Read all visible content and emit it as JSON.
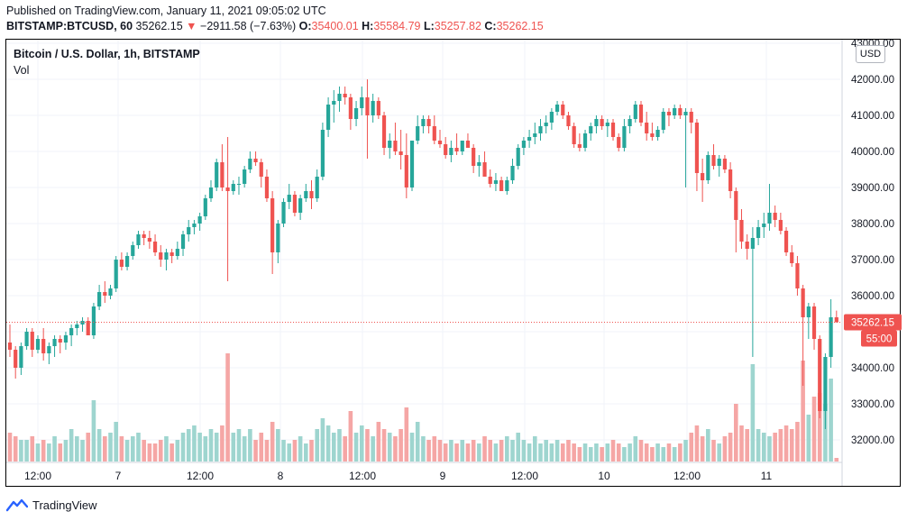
{
  "header": {
    "published": "Published on TradingView.com, January 11, 2021 09:05:02 UTC",
    "symbol": "BITSTAMP:BTCUSD, 60",
    "last": "35262.15",
    "change_arrow": "▼",
    "change": "−2911.58 (−7.63%)",
    "open_label": "O:",
    "open": "35400.01",
    "high_label": "H:",
    "high": "35584.79",
    "low_label": "L:",
    "low": "35257.82",
    "close_label": "C:",
    "close": "35262.15"
  },
  "pane": {
    "title": "Bitcoin / U.S. Dollar, 1h, BITSTAMP",
    "volume_label": "Vol",
    "currency_button": "USD"
  },
  "footer": {
    "brand": "TradingView",
    "logo_icon": "tradingview-logo-icon"
  },
  "colors": {
    "up": "#26a69a",
    "down": "#ef5350",
    "vol_up": "#9ed5cf",
    "vol_down": "#f5a6a5",
    "grid": "#f0f3fa",
    "text": "#131722"
  },
  "chart_data": {
    "type": "candlestick",
    "title": "Bitcoin / U.S. Dollar, 1h, BITSTAMP",
    "y_axis_position": "right",
    "y_ticks": [
      32000,
      33000,
      34000,
      35000,
      36000,
      37000,
      38000,
      39000,
      40000,
      41000,
      42000,
      43000
    ],
    "y_tick_labels": [
      "32000.00",
      "33000.00",
      "34000.00",
      "",
      "36000.00",
      "37000.00",
      "38000.00",
      "39000.00",
      "40000.00",
      "41000.00",
      "42000.00",
      "43000.00"
    ],
    "ylim": [
      31400,
      43100
    ],
    "x_ticks": [
      "12:00",
      "7",
      "12:00",
      "8",
      "12:00",
      "9",
      "12:00",
      "10",
      "12:00",
      "11"
    ],
    "last_price_label": "35262.15",
    "countdown_label": "55:00",
    "grid": true,
    "candles": [
      {
        "o": 34700,
        "h": 35200,
        "l": 34300,
        "c": 34500,
        "v": 8
      },
      {
        "o": 34500,
        "h": 34600,
        "l": 33700,
        "c": 34000,
        "v": 7
      },
      {
        "o": 34000,
        "h": 34700,
        "l": 33800,
        "c": 34600,
        "v": 6
      },
      {
        "o": 34600,
        "h": 35100,
        "l": 34500,
        "c": 35000,
        "v": 6
      },
      {
        "o": 35000,
        "h": 35100,
        "l": 34300,
        "c": 34500,
        "v": 7
      },
      {
        "o": 34500,
        "h": 34900,
        "l": 34400,
        "c": 34800,
        "v": 5
      },
      {
        "o": 34800,
        "h": 35100,
        "l": 34200,
        "c": 34400,
        "v": 6
      },
      {
        "o": 34400,
        "h": 34700,
        "l": 34100,
        "c": 34600,
        "v": 5
      },
      {
        "o": 34600,
        "h": 34900,
        "l": 34300,
        "c": 34800,
        "v": 7
      },
      {
        "o": 34800,
        "h": 34900,
        "l": 34400,
        "c": 34700,
        "v": 5
      },
      {
        "o": 34700,
        "h": 35000,
        "l": 34500,
        "c": 34900,
        "v": 6
      },
      {
        "o": 34900,
        "h": 35200,
        "l": 34600,
        "c": 35100,
        "v": 9
      },
      {
        "o": 35100,
        "h": 35300,
        "l": 34900,
        "c": 35200,
        "v": 7
      },
      {
        "o": 35200,
        "h": 35400,
        "l": 35000,
        "c": 35300,
        "v": 6
      },
      {
        "o": 35300,
        "h": 35400,
        "l": 34900,
        "c": 34900,
        "v": 8
      },
      {
        "o": 34900,
        "h": 35800,
        "l": 34800,
        "c": 35700,
        "v": 17
      },
      {
        "o": 35700,
        "h": 36300,
        "l": 35600,
        "c": 36100,
        "v": 9
      },
      {
        "o": 36100,
        "h": 36400,
        "l": 35800,
        "c": 36000,
        "v": 7
      },
      {
        "o": 36000,
        "h": 36300,
        "l": 35900,
        "c": 36200,
        "v": 8
      },
      {
        "o": 36200,
        "h": 37100,
        "l": 36100,
        "c": 37000,
        "v": 11
      },
      {
        "o": 37000,
        "h": 37200,
        "l": 36700,
        "c": 36800,
        "v": 7
      },
      {
        "o": 36800,
        "h": 37200,
        "l": 36700,
        "c": 37100,
        "v": 6
      },
      {
        "o": 37100,
        "h": 37500,
        "l": 37000,
        "c": 37400,
        "v": 7
      },
      {
        "o": 37400,
        "h": 37800,
        "l": 37300,
        "c": 37700,
        "v": 8
      },
      {
        "o": 37700,
        "h": 37800,
        "l": 37400,
        "c": 37600,
        "v": 6
      },
      {
        "o": 37600,
        "h": 37800,
        "l": 37300,
        "c": 37500,
        "v": 5
      },
      {
        "o": 37500,
        "h": 37700,
        "l": 37100,
        "c": 37200,
        "v": 5
      },
      {
        "o": 37200,
        "h": 37400,
        "l": 36800,
        "c": 37000,
        "v": 6
      },
      {
        "o": 37000,
        "h": 37300,
        "l": 36700,
        "c": 37200,
        "v": 7
      },
      {
        "o": 37200,
        "h": 37300,
        "l": 36900,
        "c": 37100,
        "v": 5
      },
      {
        "o": 37100,
        "h": 37500,
        "l": 37000,
        "c": 37300,
        "v": 6
      },
      {
        "o": 37300,
        "h": 37800,
        "l": 37100,
        "c": 37700,
        "v": 8
      },
      {
        "o": 37700,
        "h": 38100,
        "l": 37500,
        "c": 37900,
        "v": 9
      },
      {
        "o": 37900,
        "h": 38100,
        "l": 37700,
        "c": 38000,
        "v": 10
      },
      {
        "o": 38000,
        "h": 38300,
        "l": 37800,
        "c": 38200,
        "v": 8
      },
      {
        "o": 38200,
        "h": 38800,
        "l": 38100,
        "c": 38700,
        "v": 7
      },
      {
        "o": 38700,
        "h": 39200,
        "l": 38600,
        "c": 39000,
        "v": 9
      },
      {
        "o": 39000,
        "h": 39800,
        "l": 38900,
        "c": 39700,
        "v": 8
      },
      {
        "o": 39700,
        "h": 40200,
        "l": 38900,
        "c": 39000,
        "v": 10
      },
      {
        "o": 39000,
        "h": 40400,
        "l": 36400,
        "c": 38900,
        "v": 30
      },
      {
        "o": 38900,
        "h": 39200,
        "l": 38800,
        "c": 39100,
        "v": 8
      },
      {
        "o": 39100,
        "h": 39300,
        "l": 38800,
        "c": 39100,
        "v": 9
      },
      {
        "o": 39100,
        "h": 39600,
        "l": 39000,
        "c": 39500,
        "v": 7
      },
      {
        "o": 39500,
        "h": 40000,
        "l": 39400,
        "c": 39800,
        "v": 9
      },
      {
        "o": 39800,
        "h": 40000,
        "l": 39600,
        "c": 39700,
        "v": 6
      },
      {
        "o": 39700,
        "h": 39800,
        "l": 39000,
        "c": 39300,
        "v": 8
      },
      {
        "o": 39300,
        "h": 39500,
        "l": 38600,
        "c": 38700,
        "v": 6
      },
      {
        "o": 38700,
        "h": 38900,
        "l": 36600,
        "c": 37200,
        "v": 11
      },
      {
        "o": 37200,
        "h": 38100,
        "l": 36900,
        "c": 38000,
        "v": 9
      },
      {
        "o": 38000,
        "h": 38700,
        "l": 37900,
        "c": 38600,
        "v": 6
      },
      {
        "o": 38600,
        "h": 39100,
        "l": 38400,
        "c": 38800,
        "v": 5
      },
      {
        "o": 38800,
        "h": 38900,
        "l": 38200,
        "c": 38300,
        "v": 6
      },
      {
        "o": 38300,
        "h": 38800,
        "l": 38100,
        "c": 38700,
        "v": 7
      },
      {
        "o": 38700,
        "h": 39100,
        "l": 38600,
        "c": 38900,
        "v": 5
      },
      {
        "o": 38900,
        "h": 39200,
        "l": 38400,
        "c": 38700,
        "v": 6
      },
      {
        "o": 38700,
        "h": 39500,
        "l": 38600,
        "c": 39300,
        "v": 9
      },
      {
        "o": 39300,
        "h": 40800,
        "l": 39200,
        "c": 40600,
        "v": 12
      },
      {
        "o": 40600,
        "h": 41500,
        "l": 40400,
        "c": 41300,
        "v": 10
      },
      {
        "o": 41300,
        "h": 41700,
        "l": 40800,
        "c": 41400,
        "v": 8
      },
      {
        "o": 41400,
        "h": 41800,
        "l": 41100,
        "c": 41600,
        "v": 9
      },
      {
        "o": 41600,
        "h": 41800,
        "l": 41300,
        "c": 41500,
        "v": 7
      },
      {
        "o": 41500,
        "h": 41600,
        "l": 40600,
        "c": 40900,
        "v": 14
      },
      {
        "o": 40900,
        "h": 41400,
        "l": 40700,
        "c": 41200,
        "v": 8
      },
      {
        "o": 41200,
        "h": 41800,
        "l": 41000,
        "c": 41500,
        "v": 10
      },
      {
        "o": 41500,
        "h": 42000,
        "l": 39800,
        "c": 41000,
        "v": 9
      },
      {
        "o": 41000,
        "h": 41600,
        "l": 40800,
        "c": 41400,
        "v": 7
      },
      {
        "o": 41400,
        "h": 41500,
        "l": 40900,
        "c": 41000,
        "v": 11
      },
      {
        "o": 41000,
        "h": 41100,
        "l": 39900,
        "c": 40100,
        "v": 9
      },
      {
        "o": 40100,
        "h": 40500,
        "l": 39800,
        "c": 40300,
        "v": 8
      },
      {
        "o": 40300,
        "h": 40800,
        "l": 39900,
        "c": 40000,
        "v": 7
      },
      {
        "o": 40000,
        "h": 40600,
        "l": 39500,
        "c": 39900,
        "v": 9
      },
      {
        "o": 39900,
        "h": 40500,
        "l": 38700,
        "c": 39000,
        "v": 15
      },
      {
        "o": 39000,
        "h": 40300,
        "l": 38900,
        "c": 40300,
        "v": 8
      },
      {
        "o": 40300,
        "h": 41000,
        "l": 40200,
        "c": 40700,
        "v": 11
      },
      {
        "o": 40700,
        "h": 41000,
        "l": 40500,
        "c": 40900,
        "v": 7
      },
      {
        "o": 40900,
        "h": 41000,
        "l": 40500,
        "c": 40700,
        "v": 6
      },
      {
        "o": 40700,
        "h": 41000,
        "l": 40200,
        "c": 40300,
        "v": 7
      },
      {
        "o": 40300,
        "h": 40600,
        "l": 40100,
        "c": 40200,
        "v": 6
      },
      {
        "o": 40200,
        "h": 40400,
        "l": 39800,
        "c": 39900,
        "v": 5
      },
      {
        "o": 39900,
        "h": 40300,
        "l": 39700,
        "c": 40100,
        "v": 6
      },
      {
        "o": 40100,
        "h": 40500,
        "l": 39900,
        "c": 40000,
        "v": 5
      },
      {
        "o": 40000,
        "h": 40300,
        "l": 39900,
        "c": 40300,
        "v": 6
      },
      {
        "o": 40300,
        "h": 40500,
        "l": 40100,
        "c": 40100,
        "v": 5
      },
      {
        "o": 40100,
        "h": 40200,
        "l": 39400,
        "c": 39600,
        "v": 6
      },
      {
        "o": 39600,
        "h": 39900,
        "l": 39300,
        "c": 39700,
        "v": 5
      },
      {
        "o": 39700,
        "h": 40000,
        "l": 39300,
        "c": 39300,
        "v": 7
      },
      {
        "o": 39300,
        "h": 39500,
        "l": 39000,
        "c": 39100,
        "v": 6
      },
      {
        "o": 39100,
        "h": 39400,
        "l": 38900,
        "c": 39200,
        "v": 5
      },
      {
        "o": 39200,
        "h": 39300,
        "l": 38900,
        "c": 38900,
        "v": 6
      },
      {
        "o": 38900,
        "h": 39300,
        "l": 38800,
        "c": 39200,
        "v": 7
      },
      {
        "o": 39200,
        "h": 39800,
        "l": 39100,
        "c": 39600,
        "v": 6
      },
      {
        "o": 39600,
        "h": 40200,
        "l": 39500,
        "c": 40100,
        "v": 8
      },
      {
        "o": 40100,
        "h": 40400,
        "l": 39900,
        "c": 40300,
        "v": 6
      },
      {
        "o": 40300,
        "h": 40600,
        "l": 40100,
        "c": 40400,
        "v": 5
      },
      {
        "o": 40400,
        "h": 40800,
        "l": 40200,
        "c": 40500,
        "v": 7
      },
      {
        "o": 40500,
        "h": 40900,
        "l": 40300,
        "c": 40700,
        "v": 5
      },
      {
        "o": 40700,
        "h": 41000,
        "l": 40500,
        "c": 40800,
        "v": 6
      },
      {
        "o": 40800,
        "h": 41200,
        "l": 40600,
        "c": 41100,
        "v": 5
      },
      {
        "o": 41100,
        "h": 41400,
        "l": 41000,
        "c": 41300,
        "v": 6
      },
      {
        "o": 41300,
        "h": 41400,
        "l": 40900,
        "c": 41000,
        "v": 5
      },
      {
        "o": 41000,
        "h": 41100,
        "l": 40600,
        "c": 40700,
        "v": 6
      },
      {
        "o": 40700,
        "h": 40800,
        "l": 40100,
        "c": 40200,
        "v": 5
      },
      {
        "o": 40200,
        "h": 40500,
        "l": 40000,
        "c": 40100,
        "v": 4
      },
      {
        "o": 40100,
        "h": 40600,
        "l": 40000,
        "c": 40500,
        "v": 5
      },
      {
        "o": 40500,
        "h": 40800,
        "l": 40300,
        "c": 40700,
        "v": 4
      },
      {
        "o": 40700,
        "h": 41000,
        "l": 40500,
        "c": 40900,
        "v": 5
      },
      {
        "o": 40900,
        "h": 41000,
        "l": 40600,
        "c": 40700,
        "v": 4
      },
      {
        "o": 40700,
        "h": 40900,
        "l": 40400,
        "c": 40800,
        "v": 5
      },
      {
        "o": 40800,
        "h": 40900,
        "l": 40300,
        "c": 40400,
        "v": 6
      },
      {
        "o": 40400,
        "h": 40500,
        "l": 40000,
        "c": 40100,
        "v": 5
      },
      {
        "o": 40100,
        "h": 40900,
        "l": 40000,
        "c": 40700,
        "v": 4
      },
      {
        "o": 40700,
        "h": 41000,
        "l": 40500,
        "c": 40900,
        "v": 5
      },
      {
        "o": 40900,
        "h": 41400,
        "l": 40800,
        "c": 41300,
        "v": 7
      },
      {
        "o": 41300,
        "h": 41400,
        "l": 40700,
        "c": 40800,
        "v": 6
      },
      {
        "o": 40800,
        "h": 41100,
        "l": 40300,
        "c": 40500,
        "v": 5
      },
      {
        "o": 40500,
        "h": 40800,
        "l": 40300,
        "c": 40400,
        "v": 4
      },
      {
        "o": 40400,
        "h": 40700,
        "l": 40300,
        "c": 40600,
        "v": 5
      },
      {
        "o": 40600,
        "h": 41200,
        "l": 40500,
        "c": 41100,
        "v": 4
      },
      {
        "o": 41100,
        "h": 41200,
        "l": 40700,
        "c": 41000,
        "v": 5
      },
      {
        "o": 41000,
        "h": 41300,
        "l": 40900,
        "c": 41200,
        "v": 4
      },
      {
        "o": 41200,
        "h": 41300,
        "l": 40900,
        "c": 41000,
        "v": 5
      },
      {
        "o": 41000,
        "h": 41200,
        "l": 39000,
        "c": 41100,
        "v": 6
      },
      {
        "o": 41100,
        "h": 41200,
        "l": 40500,
        "c": 40800,
        "v": 8
      },
      {
        "o": 40800,
        "h": 40900,
        "l": 38900,
        "c": 39400,
        "v": 10
      },
      {
        "o": 39400,
        "h": 39800,
        "l": 38600,
        "c": 39200,
        "v": 7
      },
      {
        "o": 39200,
        "h": 40000,
        "l": 39100,
        "c": 39900,
        "v": 9
      },
      {
        "o": 39900,
        "h": 40200,
        "l": 39500,
        "c": 39600,
        "v": 6
      },
      {
        "o": 39600,
        "h": 39900,
        "l": 39300,
        "c": 39800,
        "v": 5
      },
      {
        "o": 39800,
        "h": 39900,
        "l": 39400,
        "c": 39500,
        "v": 7
      },
      {
        "o": 39500,
        "h": 39700,
        "l": 38700,
        "c": 38900,
        "v": 8
      },
      {
        "o": 38900,
        "h": 39000,
        "l": 37200,
        "c": 38100,
        "v": 16
      },
      {
        "o": 38100,
        "h": 38400,
        "l": 37300,
        "c": 37500,
        "v": 10
      },
      {
        "o": 37500,
        "h": 37700,
        "l": 37000,
        "c": 37300,
        "v": 9
      },
      {
        "o": 37300,
        "h": 37900,
        "l": 34300,
        "c": 37600,
        "v": 27
      },
      {
        "o": 37600,
        "h": 38100,
        "l": 37400,
        "c": 37900,
        "v": 9
      },
      {
        "o": 37900,
        "h": 38300,
        "l": 37600,
        "c": 38000,
        "v": 8
      },
      {
        "o": 38000,
        "h": 39100,
        "l": 37800,
        "c": 38300,
        "v": 7
      },
      {
        "o": 38300,
        "h": 38500,
        "l": 37900,
        "c": 38100,
        "v": 8
      },
      {
        "o": 38100,
        "h": 38300,
        "l": 37700,
        "c": 37800,
        "v": 9
      },
      {
        "o": 37800,
        "h": 37900,
        "l": 37100,
        "c": 37200,
        "v": 10
      },
      {
        "o": 37200,
        "h": 37400,
        "l": 36800,
        "c": 36900,
        "v": 9
      },
      {
        "o": 36900,
        "h": 37100,
        "l": 36000,
        "c": 36200,
        "v": 11
      },
      {
        "o": 36200,
        "h": 36300,
        "l": 33500,
        "c": 35400,
        "v": 28
      },
      {
        "o": 35400,
        "h": 35800,
        "l": 34800,
        "c": 35700,
        "v": 13
      },
      {
        "o": 35700,
        "h": 35800,
        "l": 34500,
        "c": 34800,
        "v": 18
      },
      {
        "o": 34800,
        "h": 34900,
        "l": 32600,
        "c": 32800,
        "v": 19
      },
      {
        "o": 32800,
        "h": 34400,
        "l": 32300,
        "c": 34300,
        "v": 16
      },
      {
        "o": 34300,
        "h": 35900,
        "l": 34000,
        "c": 35400,
        "v": 23
      },
      {
        "o": 35400,
        "h": 35584.79,
        "l": 35257.82,
        "c": 35262.15,
        "v": 1
      }
    ]
  }
}
